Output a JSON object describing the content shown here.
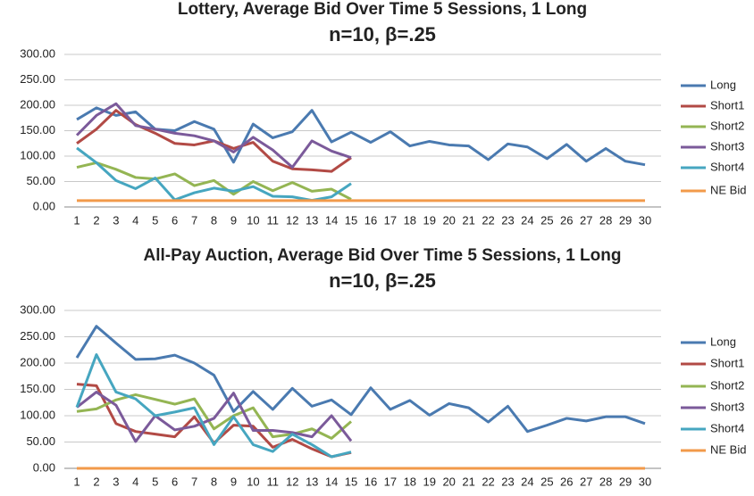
{
  "chart_data": [
    {
      "type": "line",
      "title": "Lottery, Average Bid Over Time 5 Sessions,  1 Long",
      "subtitle": "n=10, β=.25",
      "categories": [
        1,
        2,
        3,
        4,
        5,
        6,
        7,
        8,
        9,
        10,
        11,
        12,
        13,
        14,
        15,
        16,
        17,
        18,
        19,
        20,
        21,
        22,
        23,
        24,
        25,
        26,
        27,
        28,
        29,
        30
      ],
      "ylim": [
        0,
        300
      ],
      "yticks": [
        {
          "value": 0,
          "label": "0.00"
        },
        {
          "value": 50,
          "label": "50.00"
        },
        {
          "value": 100,
          "label": "100.00"
        },
        {
          "value": 150,
          "label": "150.00"
        },
        {
          "value": 200,
          "label": "200.00"
        },
        {
          "value": 250,
          "label": "250.00"
        },
        {
          "value": 300,
          "label": "300.00"
        }
      ],
      "grid": true,
      "legend": "right",
      "series": [
        {
          "name": "Long",
          "color": "#4a7ab0",
          "values": [
            172,
            195,
            180,
            187,
            153,
            150,
            168,
            153,
            88,
            163,
            136,
            148,
            190,
            128,
            147,
            127,
            148,
            120,
            129,
            122,
            120,
            93,
            124,
            118,
            95,
            123,
            90,
            115,
            90,
            83
          ]
        },
        {
          "name": "Short1",
          "color": "#b24a45",
          "values": [
            125,
            153,
            190,
            162,
            145,
            125,
            122,
            130,
            115,
            127,
            90,
            75,
            73,
            70,
            97,
            null,
            null,
            null,
            null,
            null,
            null,
            null,
            null,
            null,
            null,
            null,
            null,
            null,
            null,
            null
          ]
        },
        {
          "name": "Short2",
          "color": "#94b553",
          "values": [
            78,
            87,
            74,
            58,
            55,
            65,
            42,
            52,
            25,
            50,
            32,
            48,
            31,
            35,
            15,
            null,
            null,
            null,
            null,
            null,
            null,
            null,
            null,
            null,
            null,
            null,
            null,
            null,
            null,
            null
          ]
        },
        {
          "name": "Short3",
          "color": "#7b5a9a",
          "values": [
            141,
            180,
            203,
            160,
            153,
            145,
            140,
            130,
            108,
            137,
            112,
            78,
            130,
            110,
            97,
            null,
            null,
            null,
            null,
            null,
            null,
            null,
            null,
            null,
            null,
            null,
            null,
            null,
            null,
            null
          ]
        },
        {
          "name": "Short4",
          "color": "#46a6c0",
          "values": [
            116,
            87,
            52,
            36,
            57,
            14,
            28,
            37,
            31,
            40,
            21,
            20,
            13,
            20,
            46,
            null,
            null,
            null,
            null,
            null,
            null,
            null,
            null,
            null,
            null,
            null,
            null,
            null,
            null,
            null
          ]
        },
        {
          "name": "NE Bid",
          "color": "#f29a4a",
          "values": [
            12.5,
            12.5,
            12.5,
            12.5,
            12.5,
            12.5,
            12.5,
            12.5,
            12.5,
            12.5,
            12.5,
            12.5,
            12.5,
            12.5,
            12.5,
            12.5,
            12.5,
            12.5,
            12.5,
            12.5,
            12.5,
            12.5,
            12.5,
            12.5,
            12.5,
            12.5,
            12.5,
            12.5,
            12.5,
            12.5
          ]
        }
      ]
    },
    {
      "type": "line",
      "title": "All-Pay Auction, Average Bid Over Time 5 Sessions,  1 Long",
      "subtitle": "n=10, β=.25",
      "categories": [
        1,
        2,
        3,
        4,
        5,
        6,
        7,
        8,
        9,
        10,
        11,
        12,
        13,
        14,
        15,
        16,
        17,
        18,
        19,
        20,
        21,
        22,
        23,
        24,
        25,
        26,
        27,
        28,
        29,
        30
      ],
      "ylim": [
        0,
        300
      ],
      "yticks": [
        {
          "value": 0,
          "label": "0.00"
        },
        {
          "value": 50,
          "label": "50.00"
        },
        {
          "value": 100,
          "label": "100.00"
        },
        {
          "value": 150,
          "label": "150.00"
        },
        {
          "value": 200,
          "label": "200.00"
        },
        {
          "value": 250,
          "label": "250.00"
        },
        {
          "value": 300,
          "label": "300.00"
        }
      ],
      "grid": true,
      "legend": "right",
      "series": [
        {
          "name": "Long",
          "color": "#4a7ab0",
          "values": [
            210,
            270,
            238,
            207,
            208,
            215,
            200,
            177,
            108,
            146,
            112,
            152,
            118,
            130,
            102,
            153,
            112,
            129,
            101,
            123,
            115,
            88,
            118,
            70,
            82,
            95,
            90,
            98,
            98,
            85
          ]
        },
        {
          "name": "Short1",
          "color": "#b24a45",
          "values": [
            160,
            157,
            85,
            70,
            65,
            60,
            98,
            48,
            82,
            80,
            40,
            55,
            37,
            22,
            30,
            null,
            null,
            null,
            null,
            null,
            null,
            null,
            null,
            null,
            null,
            null,
            null,
            null,
            null,
            null
          ]
        },
        {
          "name": "Short2",
          "color": "#94b553",
          "values": [
            108,
            113,
            130,
            140,
            131,
            122,
            132,
            75,
            100,
            115,
            60,
            65,
            75,
            57,
            89,
            null,
            null,
            null,
            null,
            null,
            null,
            null,
            null,
            null,
            null,
            null,
            null,
            null,
            null,
            null
          ]
        },
        {
          "name": "Short3",
          "color": "#7b5a9a",
          "values": [
            116,
            145,
            120,
            51,
            100,
            73,
            80,
            95,
            143,
            72,
            72,
            68,
            60,
            100,
            52,
            null,
            null,
            null,
            null,
            null,
            null,
            null,
            null,
            null,
            null,
            null,
            null,
            null,
            null,
            null
          ]
        },
        {
          "name": "Short4",
          "color": "#46a6c0",
          "values": [
            116,
            216,
            145,
            132,
            100,
            107,
            115,
            45,
            98,
            45,
            32,
            65,
            45,
            22,
            31,
            null,
            null,
            null,
            null,
            null,
            null,
            null,
            null,
            null,
            null,
            null,
            null,
            null,
            null,
            null
          ]
        },
        {
          "name": "NE Bid",
          "color": "#f29a4a",
          "values": [
            0,
            0,
            0,
            0,
            0,
            0,
            0,
            0,
            0,
            0,
            0,
            0,
            0,
            0,
            0,
            0,
            0,
            0,
            0,
            0,
            0,
            0,
            0,
            0,
            0,
            0,
            0,
            0,
            0,
            0
          ]
        }
      ]
    }
  ]
}
